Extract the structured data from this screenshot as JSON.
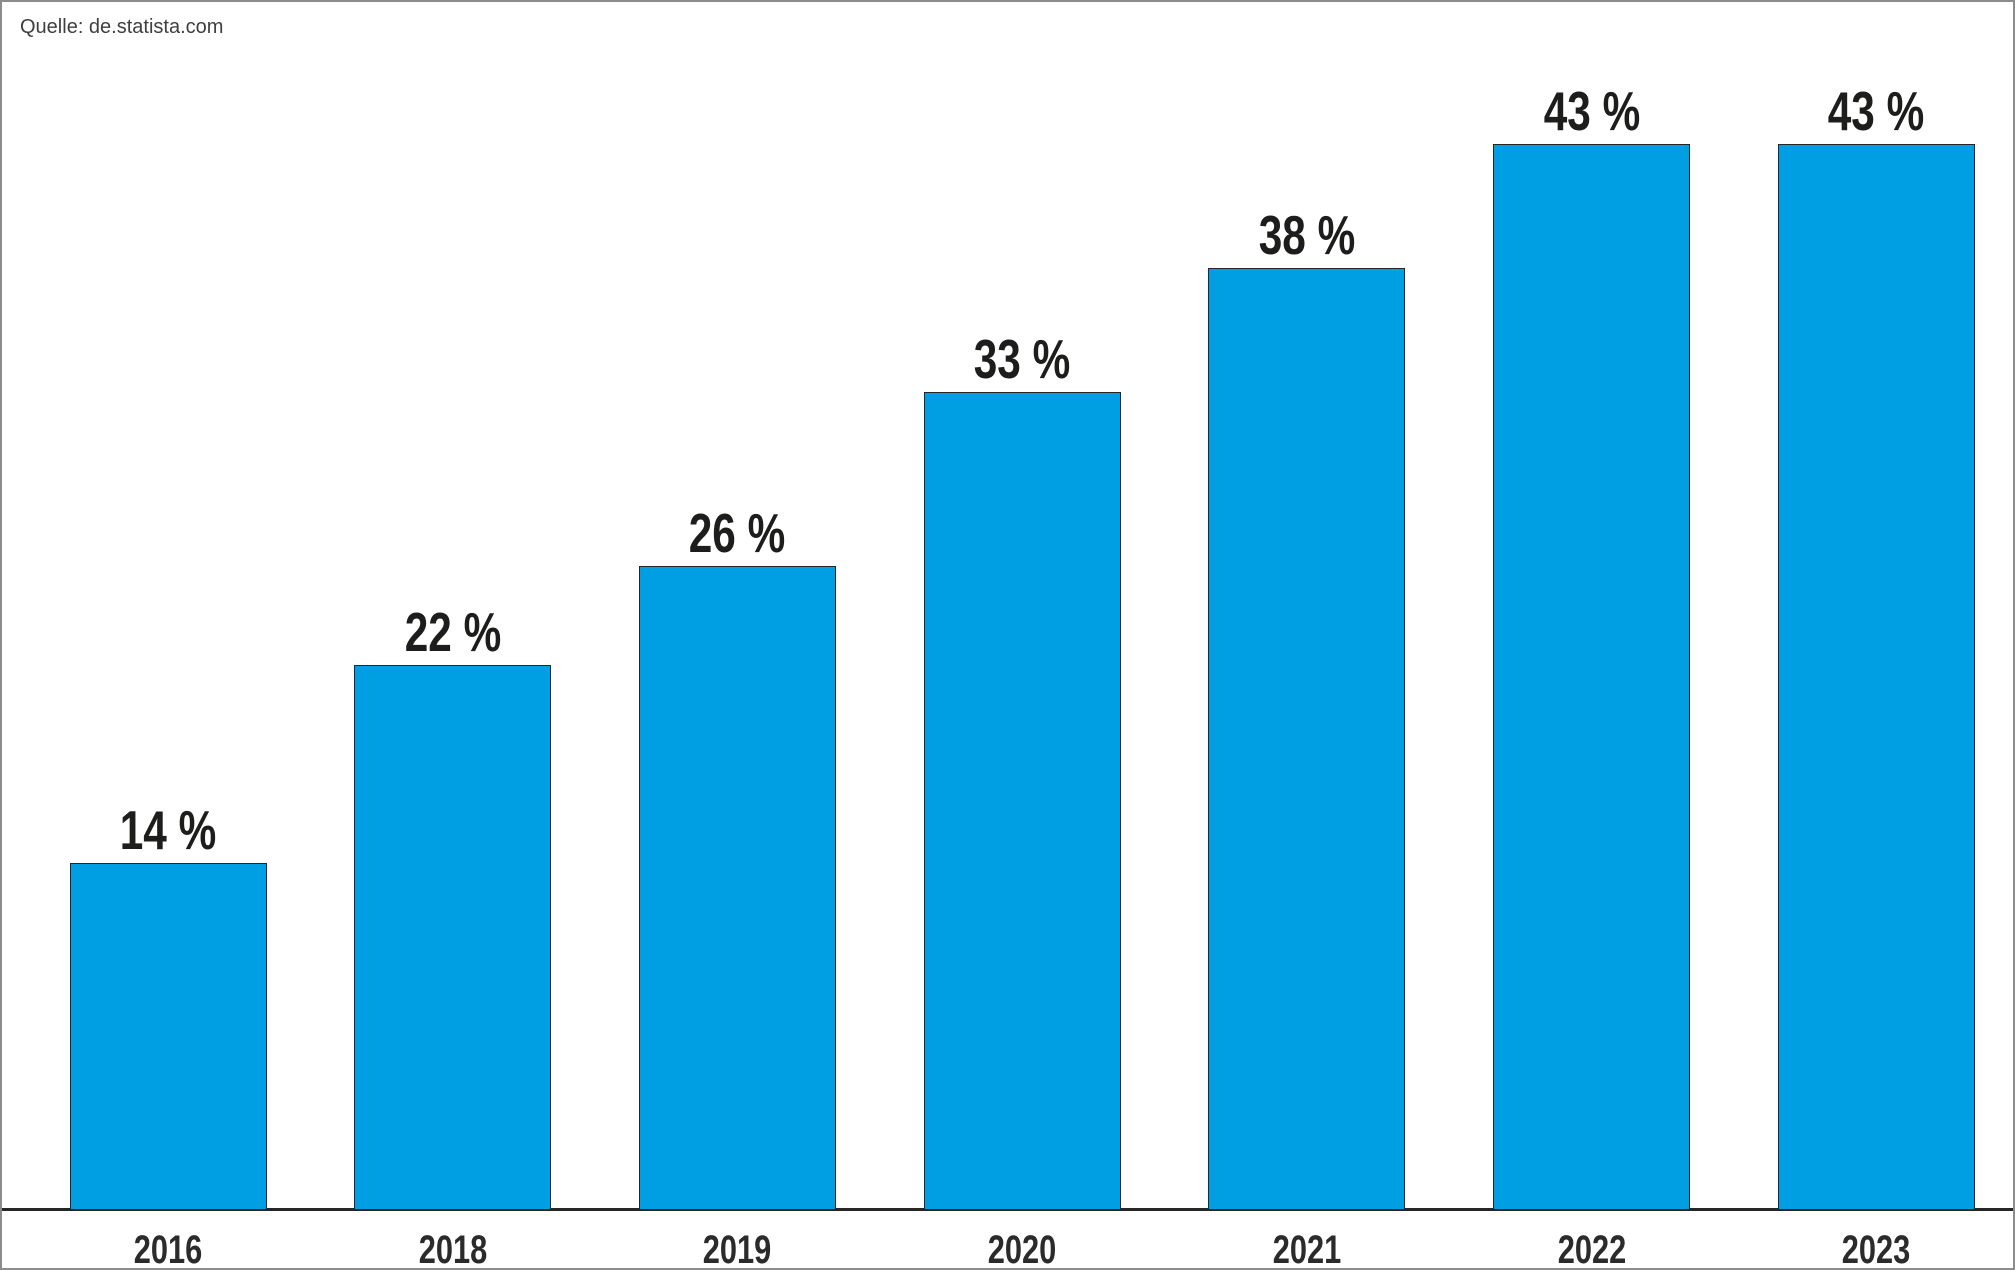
{
  "source": {
    "label": "Quelle: de.statista.com"
  },
  "chart_data": {
    "type": "bar",
    "title": "",
    "xlabel": "",
    "ylabel": "",
    "categories": [
      "2016",
      "2018",
      "2019",
      "2020",
      "2021",
      "2022",
      "2023"
    ],
    "values": [
      14,
      22,
      26,
      33,
      38,
      43,
      43
    ],
    "value_labels": [
      "14 %",
      "22 %",
      "26 %",
      "33 %",
      "38 %",
      "43 %",
      "43 %"
    ],
    "unit": "%",
    "ylim": [
      0,
      48
    ],
    "grid": false,
    "legend": false,
    "y_axis_visible": false,
    "colors": {
      "bar_fill": "#009fe3",
      "bar_border": "#262626",
      "axis_line": "#262626",
      "value_label": "#1d1d1b",
      "tick_label": "#2b2b2b"
    }
  }
}
